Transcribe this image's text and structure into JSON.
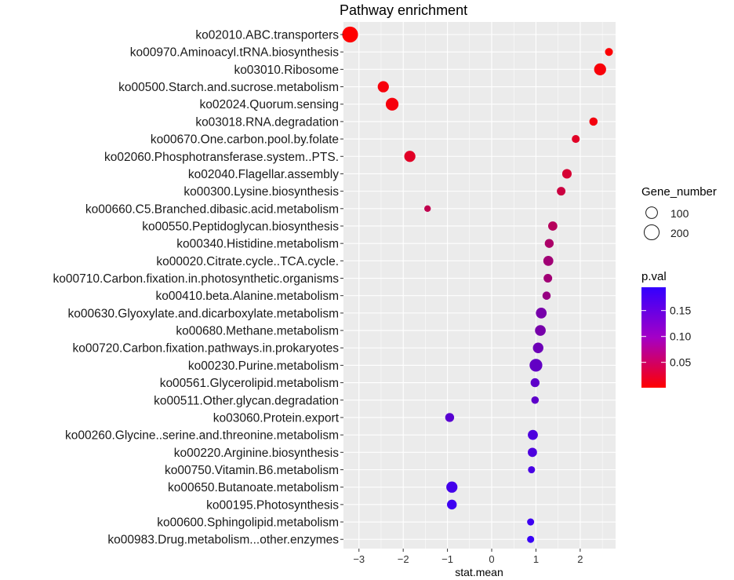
{
  "chart_data": {
    "type": "scatter",
    "title": "Pathway enrichment",
    "xlabel": "stat.mean",
    "ylabel": "",
    "xlim": [
      -3.35,
      2.8
    ],
    "x_ticks": [
      -3,
      -2,
      -1,
      0,
      1,
      2
    ],
    "points": [
      {
        "pathway": "ko02010.ABC.transporters",
        "stat_mean": -3.2,
        "gene_number": 230,
        "p_val": 0.001
      },
      {
        "pathway": "ko00970.Aminoacyl.tRNA.biosynthesis",
        "stat_mean": 2.65,
        "gene_number": 30,
        "p_val": 0.004
      },
      {
        "pathway": "ko03010.Ribosome",
        "stat_mean": 2.45,
        "gene_number": 110,
        "p_val": 0.008
      },
      {
        "pathway": "ko00500.Starch.and.sucrose.metabolism",
        "stat_mean": -2.45,
        "gene_number": 90,
        "p_val": 0.009
      },
      {
        "pathway": "ko02024.Quorum.sensing",
        "stat_mean": -2.25,
        "gene_number": 130,
        "p_val": 0.01
      },
      {
        "pathway": "ko03018.RNA.degradation",
        "stat_mean": 2.3,
        "gene_number": 35,
        "p_val": 0.012
      },
      {
        "pathway": "ko00670.One.carbon.pool.by.folate",
        "stat_mean": 1.9,
        "gene_number": 30,
        "p_val": 0.03
      },
      {
        "pathway": "ko02060.Phosphotransferase.system..PTS.",
        "stat_mean": -1.85,
        "gene_number": 90,
        "p_val": 0.03
      },
      {
        "pathway": "ko02040.Flagellar.assembly",
        "stat_mean": 1.7,
        "gene_number": 55,
        "p_val": 0.04
      },
      {
        "pathway": "ko00300.Lysine.biosynthesis",
        "stat_mean": 1.57,
        "gene_number": 40,
        "p_val": 0.05
      },
      {
        "pathway": "ko00660.C5.Branched.dibasic.acid.metabolism",
        "stat_mean": -1.45,
        "gene_number": 15,
        "p_val": 0.06
      },
      {
        "pathway": "ko00550.Peptidoglycan.biosynthesis",
        "stat_mean": 1.38,
        "gene_number": 50,
        "p_val": 0.07
      },
      {
        "pathway": "ko00340.Histidine.metabolism",
        "stat_mean": 1.3,
        "gene_number": 45,
        "p_val": 0.08
      },
      {
        "pathway": "ko00020.Citrate.cycle..TCA.cycle.",
        "stat_mean": 1.28,
        "gene_number": 65,
        "p_val": 0.09
      },
      {
        "pathway": "ko00710.Carbon.fixation.in.photosynthetic.organisms",
        "stat_mean": 1.27,
        "gene_number": 40,
        "p_val": 0.09
      },
      {
        "pathway": "ko00410.beta.Alanine.metabolism",
        "stat_mean": 1.24,
        "gene_number": 35,
        "p_val": 0.1
      },
      {
        "pathway": "ko00630.Glyoxylate.and.dicarboxylate.metabolism",
        "stat_mean": 1.12,
        "gene_number": 80,
        "p_val": 0.13
      },
      {
        "pathway": "ko00680.Methane.metabolism",
        "stat_mean": 1.1,
        "gene_number": 80,
        "p_val": 0.13
      },
      {
        "pathway": "ko00720.Carbon.fixation.pathways.in.prokaryotes",
        "stat_mean": 1.05,
        "gene_number": 75,
        "p_val": 0.14
      },
      {
        "pathway": "ko00230.Purine.metabolism",
        "stat_mean": 1.0,
        "gene_number": 130,
        "p_val": 0.15
      },
      {
        "pathway": "ko00561.Glycerolipid.metabolism",
        "stat_mean": 0.98,
        "gene_number": 45,
        "p_val": 0.155
      },
      {
        "pathway": "ko00511.Other.glycan.degradation",
        "stat_mean": 0.98,
        "gene_number": 25,
        "p_val": 0.155
      },
      {
        "pathway": "ko03060.Protein.export",
        "stat_mean": -0.95,
        "gene_number": 45,
        "p_val": 0.16
      },
      {
        "pathway": "ko00260.Glycine..serine.and.threonine.metabolism",
        "stat_mean": 0.93,
        "gene_number": 65,
        "p_val": 0.17
      },
      {
        "pathway": "ko00220.Arginine.biosynthesis",
        "stat_mean": 0.92,
        "gene_number": 50,
        "p_val": 0.17
      },
      {
        "pathway": "ko00750.Vitamin.B6.metabolism",
        "stat_mean": 0.9,
        "gene_number": 20,
        "p_val": 0.175
      },
      {
        "pathway": "ko00650.Butanoate.metabolism",
        "stat_mean": -0.9,
        "gene_number": 90,
        "p_val": 0.18
      },
      {
        "pathway": "ko00195.Photosynthesis",
        "stat_mean": -0.9,
        "gene_number": 60,
        "p_val": 0.185
      },
      {
        "pathway": "ko00600.Sphingolipid.metabolism",
        "stat_mean": 0.88,
        "gene_number": 20,
        "p_val": 0.185
      },
      {
        "pathway": "ko00983.Drug.metabolism...other.enzymes",
        "stat_mean": 0.88,
        "gene_number": 20,
        "p_val": 0.19
      }
    ],
    "size_legend": {
      "title": "Gene_number",
      "values": [
        100,
        200
      ],
      "labels": [
        "100",
        "200"
      ]
    },
    "color_legend": {
      "title": "p.val",
      "range": [
        0.001,
        0.195
      ],
      "ticks": [
        0.05,
        0.1,
        0.15
      ],
      "tick_labels": [
        "0.05",
        "0.10",
        "0.15"
      ],
      "low_color": "#ff0000",
      "high_color": "#3300ff"
    },
    "panel_background": "#ebebeb",
    "grid_color": "#ffffff"
  }
}
